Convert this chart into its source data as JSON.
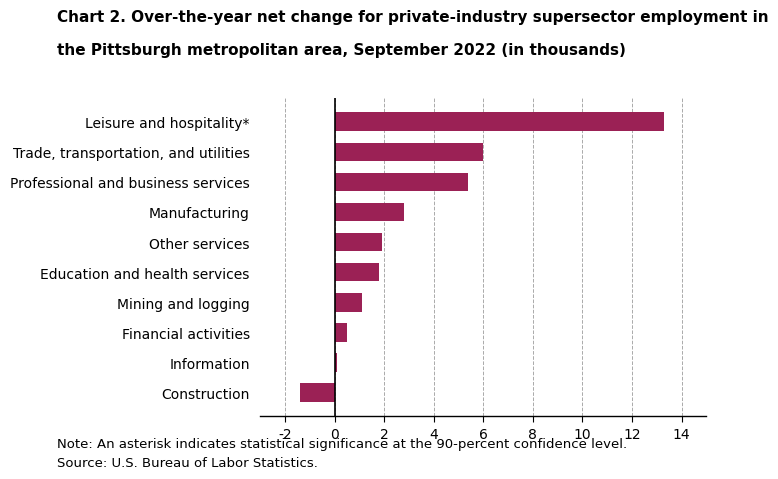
{
  "title_line1": "Chart 2. Over-the-year net change for private-industry supersector employment in",
  "title_line2": "the Pittsburgh metropolitan area, September 2022 (in thousands)",
  "categories": [
    "Construction",
    "Information",
    "Financial activities",
    "Mining and logging",
    "Education and health services",
    "Other services",
    "Manufacturing",
    "Professional and business services",
    "Trade, transportation, and utilities",
    "Leisure and hospitality*"
  ],
  "values": [
    -1.4,
    0.1,
    0.5,
    1.1,
    1.8,
    1.9,
    2.8,
    5.4,
    6.0,
    13.3
  ],
  "bar_color": "#9b2155",
  "xlim": [
    -3,
    15
  ],
  "xticks": [
    -2,
    0,
    2,
    4,
    6,
    8,
    10,
    12,
    14
  ],
  "note": "Note: An asterisk indicates statistical significance at the 90-percent confidence level.",
  "source": "Source: U.S. Bureau of Labor Statistics.",
  "title_fontsize": 11,
  "axis_fontsize": 10,
  "note_fontsize": 9.5
}
